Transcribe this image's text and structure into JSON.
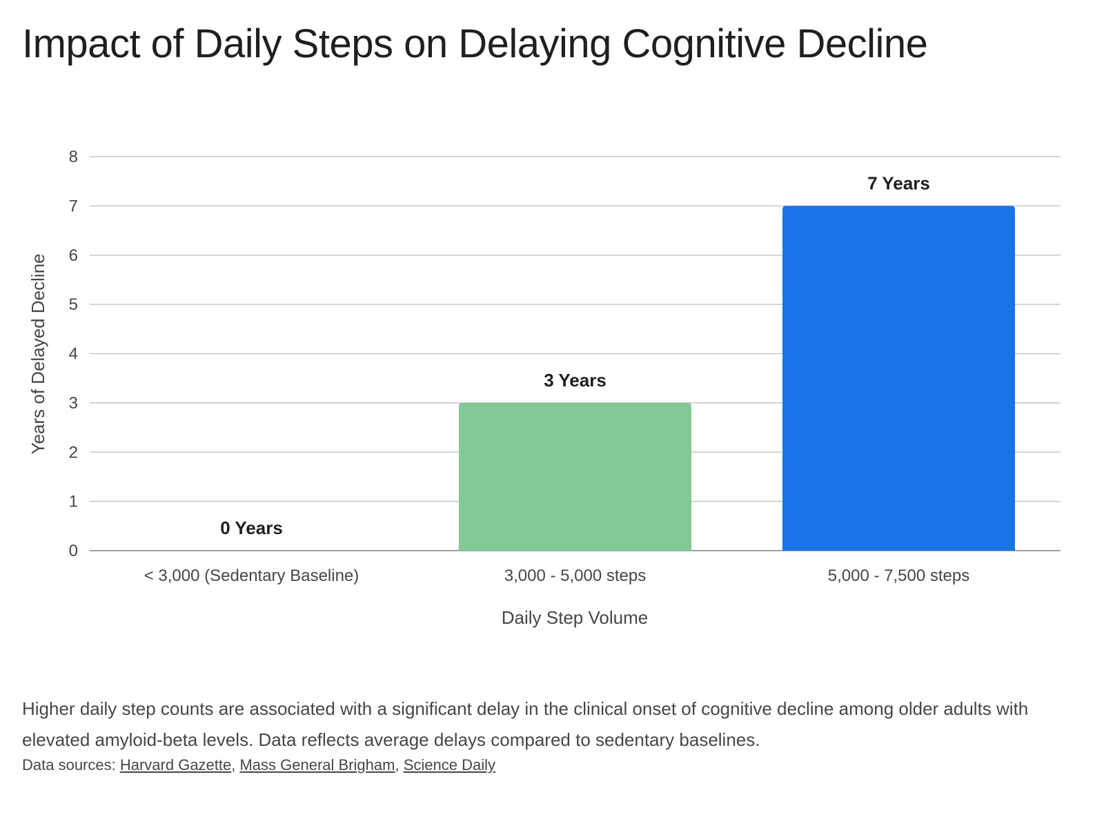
{
  "title": "Impact of Daily Steps on Delaying Cognitive Decline",
  "chart_data": {
    "type": "bar",
    "categories": [
      "< 3,000 (Sedentary Baseline)",
      "3,000 - 5,000 steps",
      "5,000 - 7,500 steps"
    ],
    "values": [
      0,
      3,
      7
    ],
    "data_labels": [
      "0 Years",
      "3 Years",
      "7 Years"
    ],
    "bar_colors": [
      "#81c995",
      "#81c995",
      "#1a73e8"
    ],
    "xlabel": "Daily Step Volume",
    "ylabel": "Years of Delayed Decline",
    "ylim": [
      0,
      8
    ],
    "yticks": [
      0,
      1,
      2,
      3,
      4,
      5,
      6,
      7,
      8
    ],
    "grid": true,
    "legend": "none"
  },
  "caption": "Higher daily step counts are associated with a significant delay in the clinical onset of cognitive decline among older adults with elevated amyloid-beta levels. Data reflects average delays compared to sedentary baselines.",
  "sources": {
    "prefix": "Data sources: ",
    "links": [
      "Harvard Gazette",
      "Mass General Brigham",
      "Science Daily"
    ],
    "separator": ", "
  },
  "colors": {
    "gridline": "#c4c7c5",
    "tick_text": "#444746",
    "label_text": "#1f1f1f"
  }
}
